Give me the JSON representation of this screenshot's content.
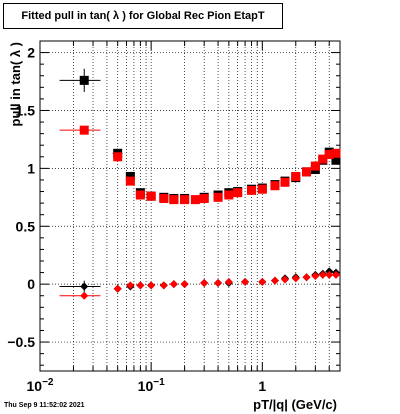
{
  "title": "Fitted pull in tan( λ ) for Global Rec Pion EtapT",
  "footer": "Thu Sep  9 11:52:02 2021",
  "colors": {
    "series_mean": "#000000",
    "series_sigma": "#ff0000",
    "frame": "#000000",
    "grid": "#000000"
  },
  "chart_data": {
    "type": "scatter",
    "title": "Fitted pull in tan( λ ) for Global Rec Pion EtapT",
    "xlabel": "pT/|q| (GeV/c)",
    "ylabel": "pull in tan( λ )",
    "xscale": "log",
    "xlim": [
      0.01,
      5
    ],
    "ylim": [
      -0.75,
      2.1
    ],
    "grid": true,
    "x_ticks": [
      {
        "value": 0.01,
        "label": "10",
        "sup": "−2"
      },
      {
        "value": 0.1,
        "label": "10",
        "sup": "−1"
      },
      {
        "value": 1,
        "label": "1",
        "sup": ""
      }
    ],
    "y_ticks": [
      {
        "value": -0.5,
        "label": "−0.5"
      },
      {
        "value": 0,
        "label": "0"
      },
      {
        "value": 0.5,
        "label": "0.5"
      },
      {
        "value": 1,
        "label": "1"
      },
      {
        "value": 1.5,
        "label": "1.5"
      },
      {
        "value": 2,
        "label": "2"
      }
    ],
    "series": [
      {
        "color": "#000000",
        "points": [
          {
            "x": 0.025,
            "y": 1.76,
            "xerr": 0.01,
            "yerr": 0.1
          },
          {
            "x": 0.05,
            "y": 1.13,
            "xerr": 0.005,
            "yerr": 0.04
          },
          {
            "x": 0.065,
            "y": 0.93,
            "yerr": 0.02
          },
          {
            "x": 0.08,
            "y": 0.79
          },
          {
            "x": 0.1,
            "y": 0.76
          },
          {
            "x": 0.13,
            "y": 0.75
          },
          {
            "x": 0.16,
            "y": 0.74
          },
          {
            "x": 0.2,
            "y": 0.74
          },
          {
            "x": 0.3,
            "y": 0.75
          },
          {
            "x": 0.4,
            "y": 0.77
          },
          {
            "x": 0.5,
            "y": 0.79
          },
          {
            "x": 0.6,
            "y": 0.8
          },
          {
            "x": 0.8,
            "y": 0.82
          },
          {
            "x": 1.0,
            "y": 0.83
          },
          {
            "x": 1.3,
            "y": 0.86
          },
          {
            "x": 1.6,
            "y": 0.89
          },
          {
            "x": 2.0,
            "y": 0.92
          },
          {
            "x": 2.5,
            "y": 0.97
          },
          {
            "x": 3.0,
            "y": 0.99
          },
          {
            "x": 3.5,
            "y": 1.07
          },
          {
            "x": 4.0,
            "y": 1.14
          },
          {
            "x": 4.6,
            "y": 1.07
          }
        ]
      },
      {
        "color": "#ff0000",
        "points": [
          {
            "x": 0.025,
            "y": 1.33,
            "xerr": 0.01
          },
          {
            "x": 0.05,
            "y": 1.1
          },
          {
            "x": 0.065,
            "y": 0.89
          },
          {
            "x": 0.08,
            "y": 0.77
          },
          {
            "x": 0.1,
            "y": 0.76
          },
          {
            "x": 0.13,
            "y": 0.74
          },
          {
            "x": 0.16,
            "y": 0.73
          },
          {
            "x": 0.2,
            "y": 0.73
          },
          {
            "x": 0.25,
            "y": 0.73
          },
          {
            "x": 0.3,
            "y": 0.74
          },
          {
            "x": 0.4,
            "y": 0.75
          },
          {
            "x": 0.5,
            "y": 0.77
          },
          {
            "x": 0.6,
            "y": 0.79
          },
          {
            "x": 0.8,
            "y": 0.81
          },
          {
            "x": 1.0,
            "y": 0.82
          },
          {
            "x": 1.3,
            "y": 0.85
          },
          {
            "x": 1.6,
            "y": 0.88
          },
          {
            "x": 2.0,
            "y": 0.93
          },
          {
            "x": 2.5,
            "y": 0.97
          },
          {
            "x": 3.0,
            "y": 1.02
          },
          {
            "x": 3.5,
            "y": 1.08
          },
          {
            "x": 4.0,
            "y": 1.12
          },
          {
            "x": 4.6,
            "y": 1.13
          }
        ]
      },
      {
        "color": "#000000",
        "marker": "diamond",
        "points": [
          {
            "x": 0.025,
            "y": -0.02,
            "xerr": 0.01,
            "yerr": 0.05
          },
          {
            "x": 0.05,
            "y": -0.04
          },
          {
            "x": 0.065,
            "y": -0.02
          },
          {
            "x": 0.08,
            "y": -0.01
          },
          {
            "x": 0.1,
            "y": -0.01
          },
          {
            "x": 0.13,
            "y": -0.01
          },
          {
            "x": 0.16,
            "y": 0.0
          },
          {
            "x": 0.2,
            "y": 0.0
          },
          {
            "x": 0.3,
            "y": 0.01
          },
          {
            "x": 0.4,
            "y": 0.01
          },
          {
            "x": 0.5,
            "y": 0.01
          },
          {
            "x": 0.7,
            "y": 0.02
          },
          {
            "x": 1.0,
            "y": 0.02
          },
          {
            "x": 1.3,
            "y": 0.03
          },
          {
            "x": 1.6,
            "y": 0.05
          },
          {
            "x": 2.0,
            "y": 0.06
          },
          {
            "x": 2.5,
            "y": 0.06
          },
          {
            "x": 3.0,
            "y": 0.08
          },
          {
            "x": 3.5,
            "y": 0.09
          },
          {
            "x": 4.0,
            "y": 0.11
          },
          {
            "x": 4.6,
            "y": 0.1
          }
        ]
      },
      {
        "color": "#ff0000",
        "marker": "diamond",
        "points": [
          {
            "x": 0.025,
            "y": -0.1,
            "xerr": 0.01
          },
          {
            "x": 0.05,
            "y": -0.04
          },
          {
            "x": 0.065,
            "y": -0.01
          },
          {
            "x": 0.08,
            "y": -0.01
          },
          {
            "x": 0.1,
            "y": -0.01
          },
          {
            "x": 0.13,
            "y": -0.01
          },
          {
            "x": 0.16,
            "y": 0.0
          },
          {
            "x": 0.2,
            "y": 0.0
          },
          {
            "x": 0.3,
            "y": 0.01
          },
          {
            "x": 0.4,
            "y": 0.01
          },
          {
            "x": 0.5,
            "y": 0.02
          },
          {
            "x": 0.7,
            "y": 0.02
          },
          {
            "x": 1.0,
            "y": 0.02
          },
          {
            "x": 1.3,
            "y": 0.03
          },
          {
            "x": 1.6,
            "y": 0.04
          },
          {
            "x": 2.0,
            "y": 0.05
          },
          {
            "x": 2.5,
            "y": 0.06
          },
          {
            "x": 3.0,
            "y": 0.07
          },
          {
            "x": 3.5,
            "y": 0.08
          },
          {
            "x": 4.0,
            "y": 0.08
          },
          {
            "x": 4.6,
            "y": 0.08
          }
        ]
      }
    ]
  }
}
